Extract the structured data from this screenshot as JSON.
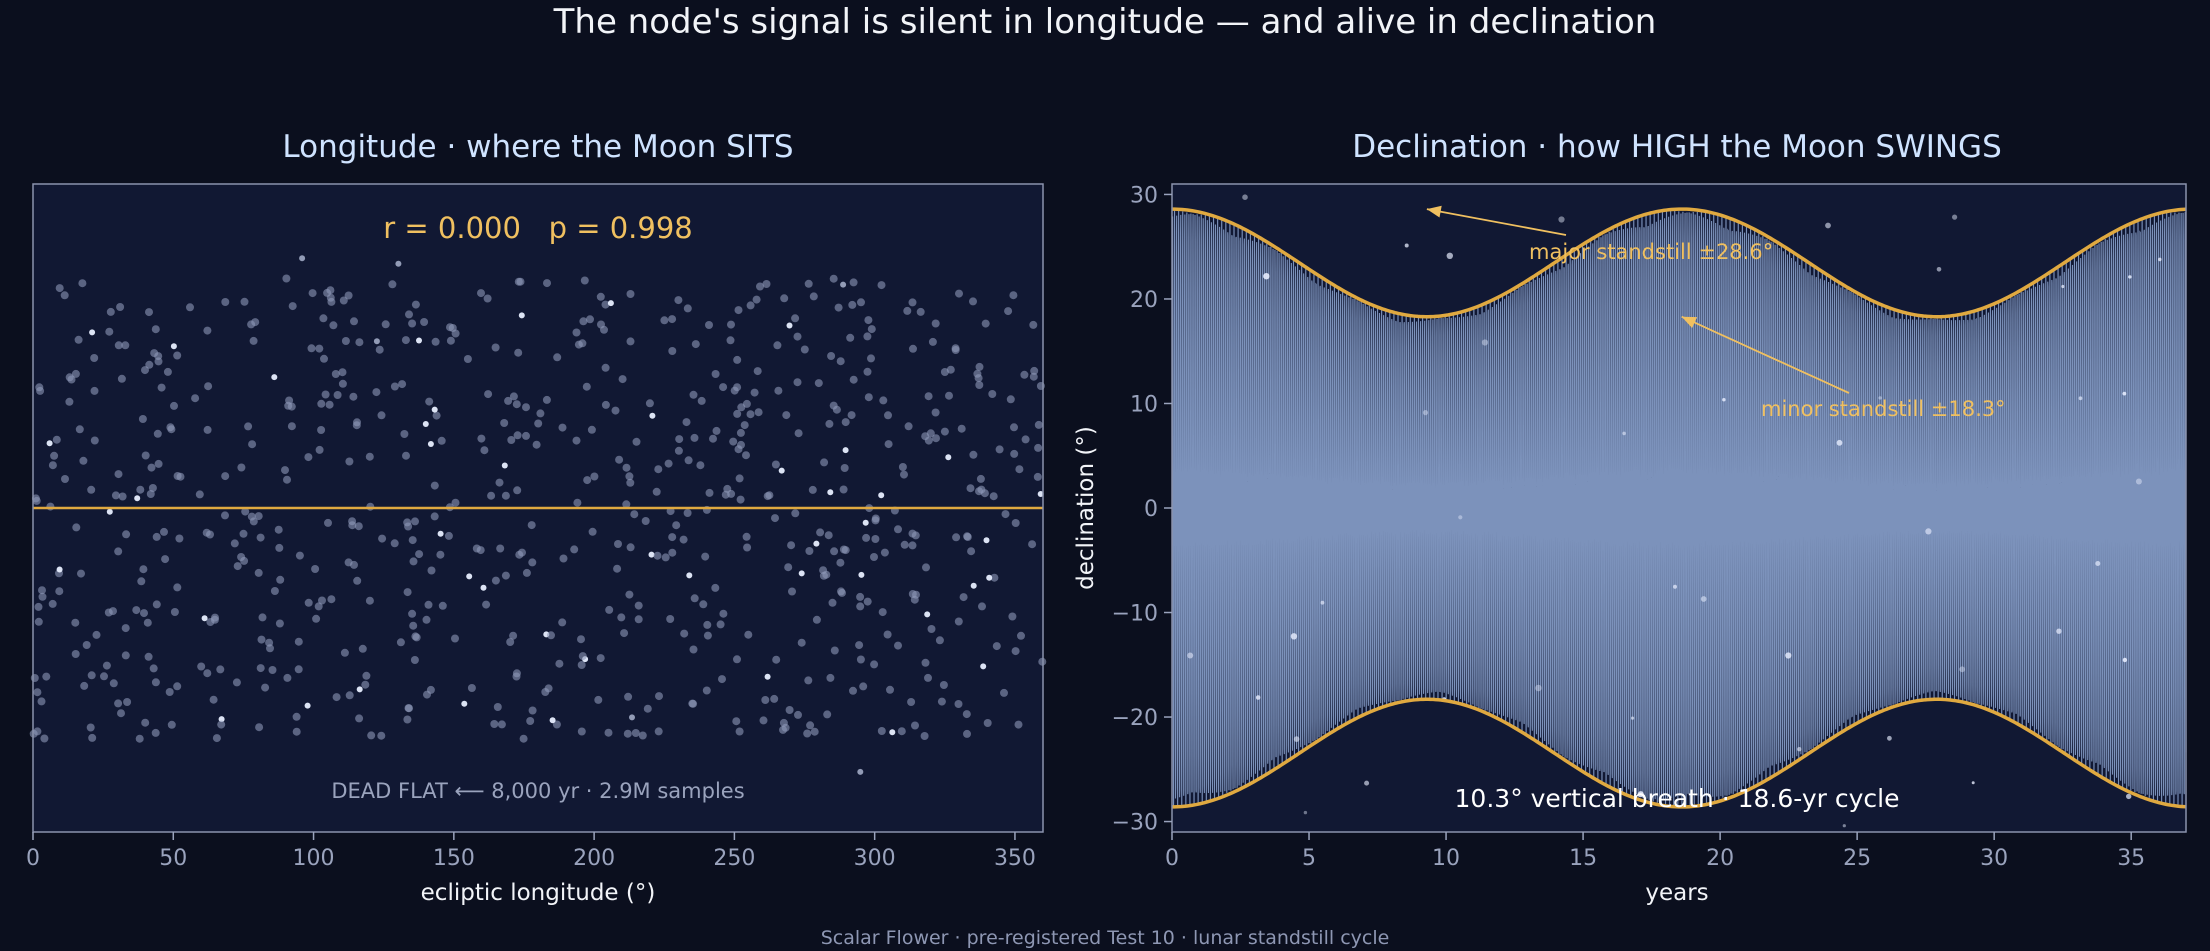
{
  "suptitle": "The node's signal is silent in longitude — and alive in declination",
  "footer": "Scalar Flower  ·  pre-registered Test 10  ·  lunar standstill cycle",
  "colors": {
    "background": "#0b0f1e",
    "panel": "#111833",
    "accent": "#e0a940",
    "series": "#8fa8d4",
    "title": "#cfe3ff",
    "annotation": "#f0c060",
    "tick": "#9aa3bd"
  },
  "chart_data": [
    {
      "type": "scatter",
      "title": "Longitude  ·  where the Moon SITS",
      "xlabel": "ecliptic longitude (°)",
      "ylabel": "",
      "xlim": [
        0,
        360
      ],
      "ylim": [
        -1.05,
        1.05
      ],
      "xticks": [
        0,
        50,
        100,
        150,
        200,
        250,
        300,
        350
      ],
      "yticks": [],
      "grid": false,
      "stats_text": "r = 0.000   p = 0.998",
      "reference_line": {
        "y": 0
      },
      "annotation": "DEAD FLAT ⟵ 8,000 yr · 2.9M samples",
      "points_description": "uniform cloud of longitude samples, y within ±0.75, flat fit line"
    },
    {
      "type": "line",
      "title": "Declination  ·  how HIGH the Moon SWINGS",
      "xlabel": "years",
      "ylabel": "declination (°)",
      "xlim": [
        0,
        37
      ],
      "ylim": [
        -31,
        31
      ],
      "xticks": [
        0,
        5,
        10,
        15,
        20,
        25,
        30,
        35
      ],
      "yticks": [
        -30,
        -20,
        -10,
        0,
        10,
        20,
        30
      ],
      "yticklabels": [
        "−30",
        "−20",
        "−10",
        "0",
        "10",
        "20",
        "30"
      ],
      "grid": false,
      "envelope": {
        "max": 28.6,
        "min": 18.3,
        "period_years": 18.6,
        "peak_years": [
          0,
          18.6,
          37.2
        ]
      },
      "monthly_period_years": 0.0748,
      "annotations": [
        {
          "text": "major standstill ±28.6°",
          "arrow_to": {
            "x": 9.3,
            "y": 28.6
          }
        },
        {
          "text": "minor standstill ±18.3°",
          "arrow_to": {
            "x": 18.6,
            "y": 18.3
          }
        }
      ],
      "caption": "10.3° vertical breath · 18.6-yr cycle"
    }
  ]
}
